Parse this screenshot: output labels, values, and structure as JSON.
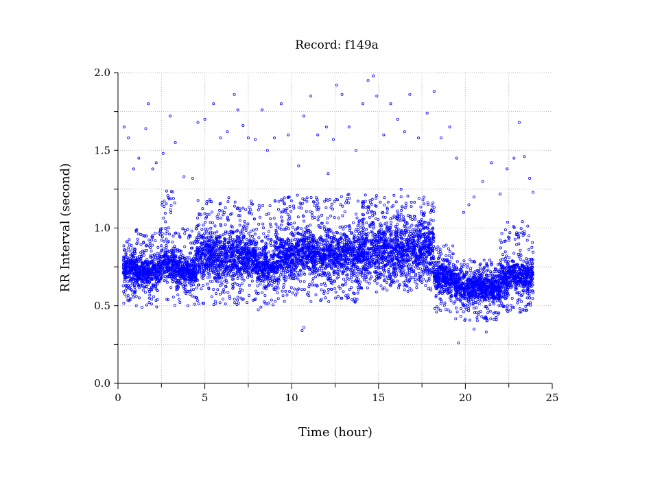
{
  "chart_data": {
    "type": "scatter",
    "title": "Record:  f149a",
    "xlabel": "Time (hour)",
    "ylabel": "RR Interval (second)",
    "xlim": [
      0,
      25
    ],
    "ylim": [
      0,
      2.0
    ],
    "x_ticks": [
      "0",
      "5",
      "10",
      "15",
      "20",
      "25"
    ],
    "y_ticks": [
      "0.0",
      "0.5",
      "1.0",
      "1.5",
      "2.0"
    ],
    "grid": true,
    "marker_color": "#0000ff",
    "series": [
      {
        "name": "",
        "segments": [
          {
            "x": [
              0.3,
              1.0
            ],
            "dense_center": 0.74,
            "dense_spread": 0.09,
            "wide_low": 0.5,
            "wide_high": 0.95
          },
          {
            "x": [
              1.0,
              2.5
            ],
            "dense_center": 0.72,
            "dense_spread": 0.08,
            "wide_low": 0.48,
            "wide_high": 1.0
          },
          {
            "x": [
              2.5,
              3.3
            ],
            "dense_center": 0.78,
            "dense_spread": 0.1,
            "wide_low": 0.5,
            "wide_high": 1.25
          },
          {
            "x": [
              3.3,
              4.5
            ],
            "dense_center": 0.72,
            "dense_spread": 0.08,
            "wide_low": 0.5,
            "wide_high": 1.0
          },
          {
            "x": [
              4.5,
              8.0
            ],
            "dense_center": 0.82,
            "dense_spread": 0.12,
            "wide_low": 0.5,
            "wide_high": 1.2
          },
          {
            "x": [
              8.0,
              9.0
            ],
            "dense_center": 0.75,
            "dense_spread": 0.1,
            "wide_low": 0.47,
            "wide_high": 1.15
          },
          {
            "x": [
              9.0,
              14.0
            ],
            "dense_center": 0.83,
            "dense_spread": 0.12,
            "wide_low": 0.52,
            "wide_high": 1.22
          },
          {
            "x": [
              14.0,
              18.2
            ],
            "dense_center": 0.86,
            "dense_spread": 0.16,
            "wide_low": 0.6,
            "wide_high": 1.22
          },
          {
            "x": [
              18.2,
              19.4
            ],
            "dense_center": 0.68,
            "dense_spread": 0.08,
            "wide_low": 0.45,
            "wide_high": 0.9
          },
          {
            "x": [
              19.4,
              22.0
            ],
            "dense_center": 0.62,
            "dense_spread": 0.07,
            "wide_low": 0.4,
            "wide_high": 0.8
          },
          {
            "x": [
              22.0,
              23.9
            ],
            "dense_center": 0.68,
            "dense_spread": 0.09,
            "wide_low": 0.45,
            "wide_high": 1.05
          }
        ],
        "outliers": [
          [
            0.35,
            1.65
          ],
          [
            0.6,
            1.58
          ],
          [
            0.9,
            1.38
          ],
          [
            1.2,
            1.45
          ],
          [
            1.75,
            1.8
          ],
          [
            1.6,
            1.64
          ],
          [
            2.2,
            1.42
          ],
          [
            2.6,
            1.48
          ],
          [
            3.0,
            1.72
          ],
          [
            3.3,
            1.55
          ],
          [
            3.8,
            1.33
          ],
          [
            4.3,
            1.32
          ],
          [
            4.6,
            1.68
          ],
          [
            5.0,
            1.7
          ],
          [
            5.5,
            1.8
          ],
          [
            5.9,
            1.58
          ],
          [
            6.3,
            1.62
          ],
          [
            6.7,
            1.86
          ],
          [
            6.9,
            1.76
          ],
          [
            7.2,
            1.66
          ],
          [
            7.5,
            1.58
          ],
          [
            7.9,
            1.57
          ],
          [
            8.3,
            1.76
          ],
          [
            8.6,
            1.5
          ],
          [
            9.0,
            1.58
          ],
          [
            9.4,
            1.8
          ],
          [
            9.8,
            1.6
          ],
          [
            10.4,
            1.4
          ],
          [
            10.7,
            1.72
          ],
          [
            11.1,
            1.85
          ],
          [
            11.5,
            1.6
          ],
          [
            12.0,
            1.65
          ],
          [
            12.4,
            1.57
          ],
          [
            12.6,
            1.92
          ],
          [
            12.9,
            1.86
          ],
          [
            13.3,
            1.65
          ],
          [
            13.7,
            1.5
          ],
          [
            14.1,
            1.8
          ],
          [
            14.4,
            1.95
          ],
          [
            14.7,
            1.98
          ],
          [
            14.9,
            1.85
          ],
          [
            15.3,
            1.6
          ],
          [
            15.7,
            1.8
          ],
          [
            16.1,
            1.7
          ],
          [
            16.5,
            1.62
          ],
          [
            16.8,
            1.86
          ],
          [
            17.3,
            1.58
          ],
          [
            17.8,
            1.74
          ],
          [
            18.2,
            1.88
          ],
          [
            18.6,
            1.58
          ],
          [
            19.1,
            1.65
          ],
          [
            19.5,
            1.45
          ],
          [
            19.9,
            1.1
          ],
          [
            20.5,
            1.2
          ],
          [
            21.0,
            1.3
          ],
          [
            21.5,
            1.42
          ],
          [
            22.0,
            1.22
          ],
          [
            22.4,
            1.38
          ],
          [
            22.8,
            1.45
          ],
          [
            23.1,
            1.68
          ],
          [
            23.4,
            1.46
          ],
          [
            23.7,
            1.32
          ],
          [
            23.9,
            1.23
          ],
          [
            19.6,
            0.26
          ],
          [
            20.5,
            0.35
          ],
          [
            21.2,
            0.33
          ],
          [
            10.6,
            0.34
          ],
          [
            10.7,
            0.36
          ],
          [
            2.0,
            1.38
          ],
          [
            12.1,
            1.35
          ],
          [
            16.3,
            1.25
          ],
          [
            20.2,
            1.15
          ]
        ]
      }
    ]
  }
}
